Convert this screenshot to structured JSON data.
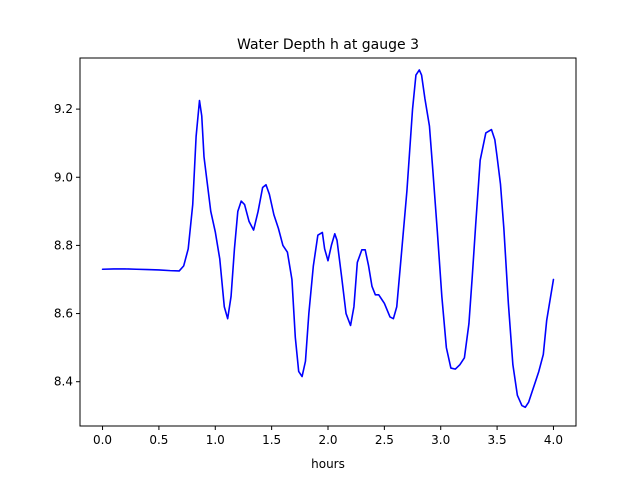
{
  "chart_data": {
    "type": "line",
    "title": "Water Depth h at gauge 3",
    "xlabel": "hours",
    "ylabel": "",
    "xlim": [
      -0.2,
      4.2
    ],
    "ylim": [
      8.27,
      9.35
    ],
    "xticks": [
      0.0,
      0.5,
      1.0,
      1.5,
      2.0,
      2.5,
      3.0,
      3.5,
      4.0
    ],
    "xtick_labels": [
      "0.0",
      "0.5",
      "1.0",
      "1.5",
      "2.0",
      "2.5",
      "3.0",
      "3.5",
      "4.0"
    ],
    "yticks": [
      8.4,
      8.6,
      8.8,
      9.0,
      9.2
    ],
    "ytick_labels": [
      "8.4",
      "8.6",
      "8.8",
      "9.0",
      "9.2"
    ],
    "grid": false,
    "series": [
      {
        "color": "#0000ff",
        "x": [
          0.0,
          0.1,
          0.2,
          0.3,
          0.4,
          0.5,
          0.6,
          0.68,
          0.72,
          0.76,
          0.8,
          0.83,
          0.86,
          0.88,
          0.9,
          0.93,
          0.96,
          1.0,
          1.04,
          1.08,
          1.11,
          1.14,
          1.17,
          1.2,
          1.23,
          1.26,
          1.3,
          1.34,
          1.38,
          1.42,
          1.45,
          1.48,
          1.52,
          1.56,
          1.6,
          1.64,
          1.68,
          1.71,
          1.74,
          1.77,
          1.8,
          1.83,
          1.87,
          1.91,
          1.95,
          1.97,
          2.0,
          2.03,
          2.06,
          2.08,
          2.12,
          2.16,
          2.2,
          2.23,
          2.26,
          2.3,
          2.33,
          2.36,
          2.39,
          2.42,
          2.45,
          2.5,
          2.55,
          2.58,
          2.61,
          2.65,
          2.7,
          2.75,
          2.78,
          2.81,
          2.83,
          2.86,
          2.9,
          2.93,
          2.97,
          3.01,
          3.05,
          3.09,
          3.13,
          3.17,
          3.21,
          3.25,
          3.28,
          3.31,
          3.35,
          3.4,
          3.45,
          3.48,
          3.5,
          3.53,
          3.56,
          3.6,
          3.64,
          3.68,
          3.72,
          3.75,
          3.78,
          3.81,
          3.84,
          3.87,
          3.91,
          3.94,
          3.97,
          4.0
        ],
        "y": [
          8.73,
          8.731,
          8.731,
          8.73,
          8.729,
          8.728,
          8.726,
          8.725,
          8.74,
          8.79,
          8.92,
          9.12,
          9.225,
          9.18,
          9.06,
          8.98,
          8.9,
          8.84,
          8.76,
          8.62,
          8.585,
          8.65,
          8.79,
          8.9,
          8.93,
          8.92,
          8.87,
          8.845,
          8.9,
          8.97,
          8.978,
          8.95,
          8.89,
          8.85,
          8.8,
          8.78,
          8.7,
          8.53,
          8.43,
          8.415,
          8.46,
          8.6,
          8.74,
          8.83,
          8.838,
          8.79,
          8.755,
          8.8,
          8.834,
          8.815,
          8.71,
          8.6,
          8.565,
          8.62,
          8.75,
          8.787,
          8.787,
          8.74,
          8.68,
          8.655,
          8.655,
          8.63,
          8.59,
          8.585,
          8.62,
          8.77,
          8.96,
          9.2,
          9.3,
          9.315,
          9.3,
          9.23,
          9.15,
          9.02,
          8.84,
          8.65,
          8.5,
          8.44,
          8.437,
          8.45,
          8.47,
          8.57,
          8.71,
          8.86,
          9.05,
          9.13,
          9.14,
          9.11,
          9.06,
          8.98,
          8.85,
          8.63,
          8.45,
          8.36,
          8.33,
          8.325,
          8.34,
          8.37,
          8.4,
          8.43,
          8.48,
          8.58,
          8.64,
          8.7
        ]
      }
    ]
  }
}
